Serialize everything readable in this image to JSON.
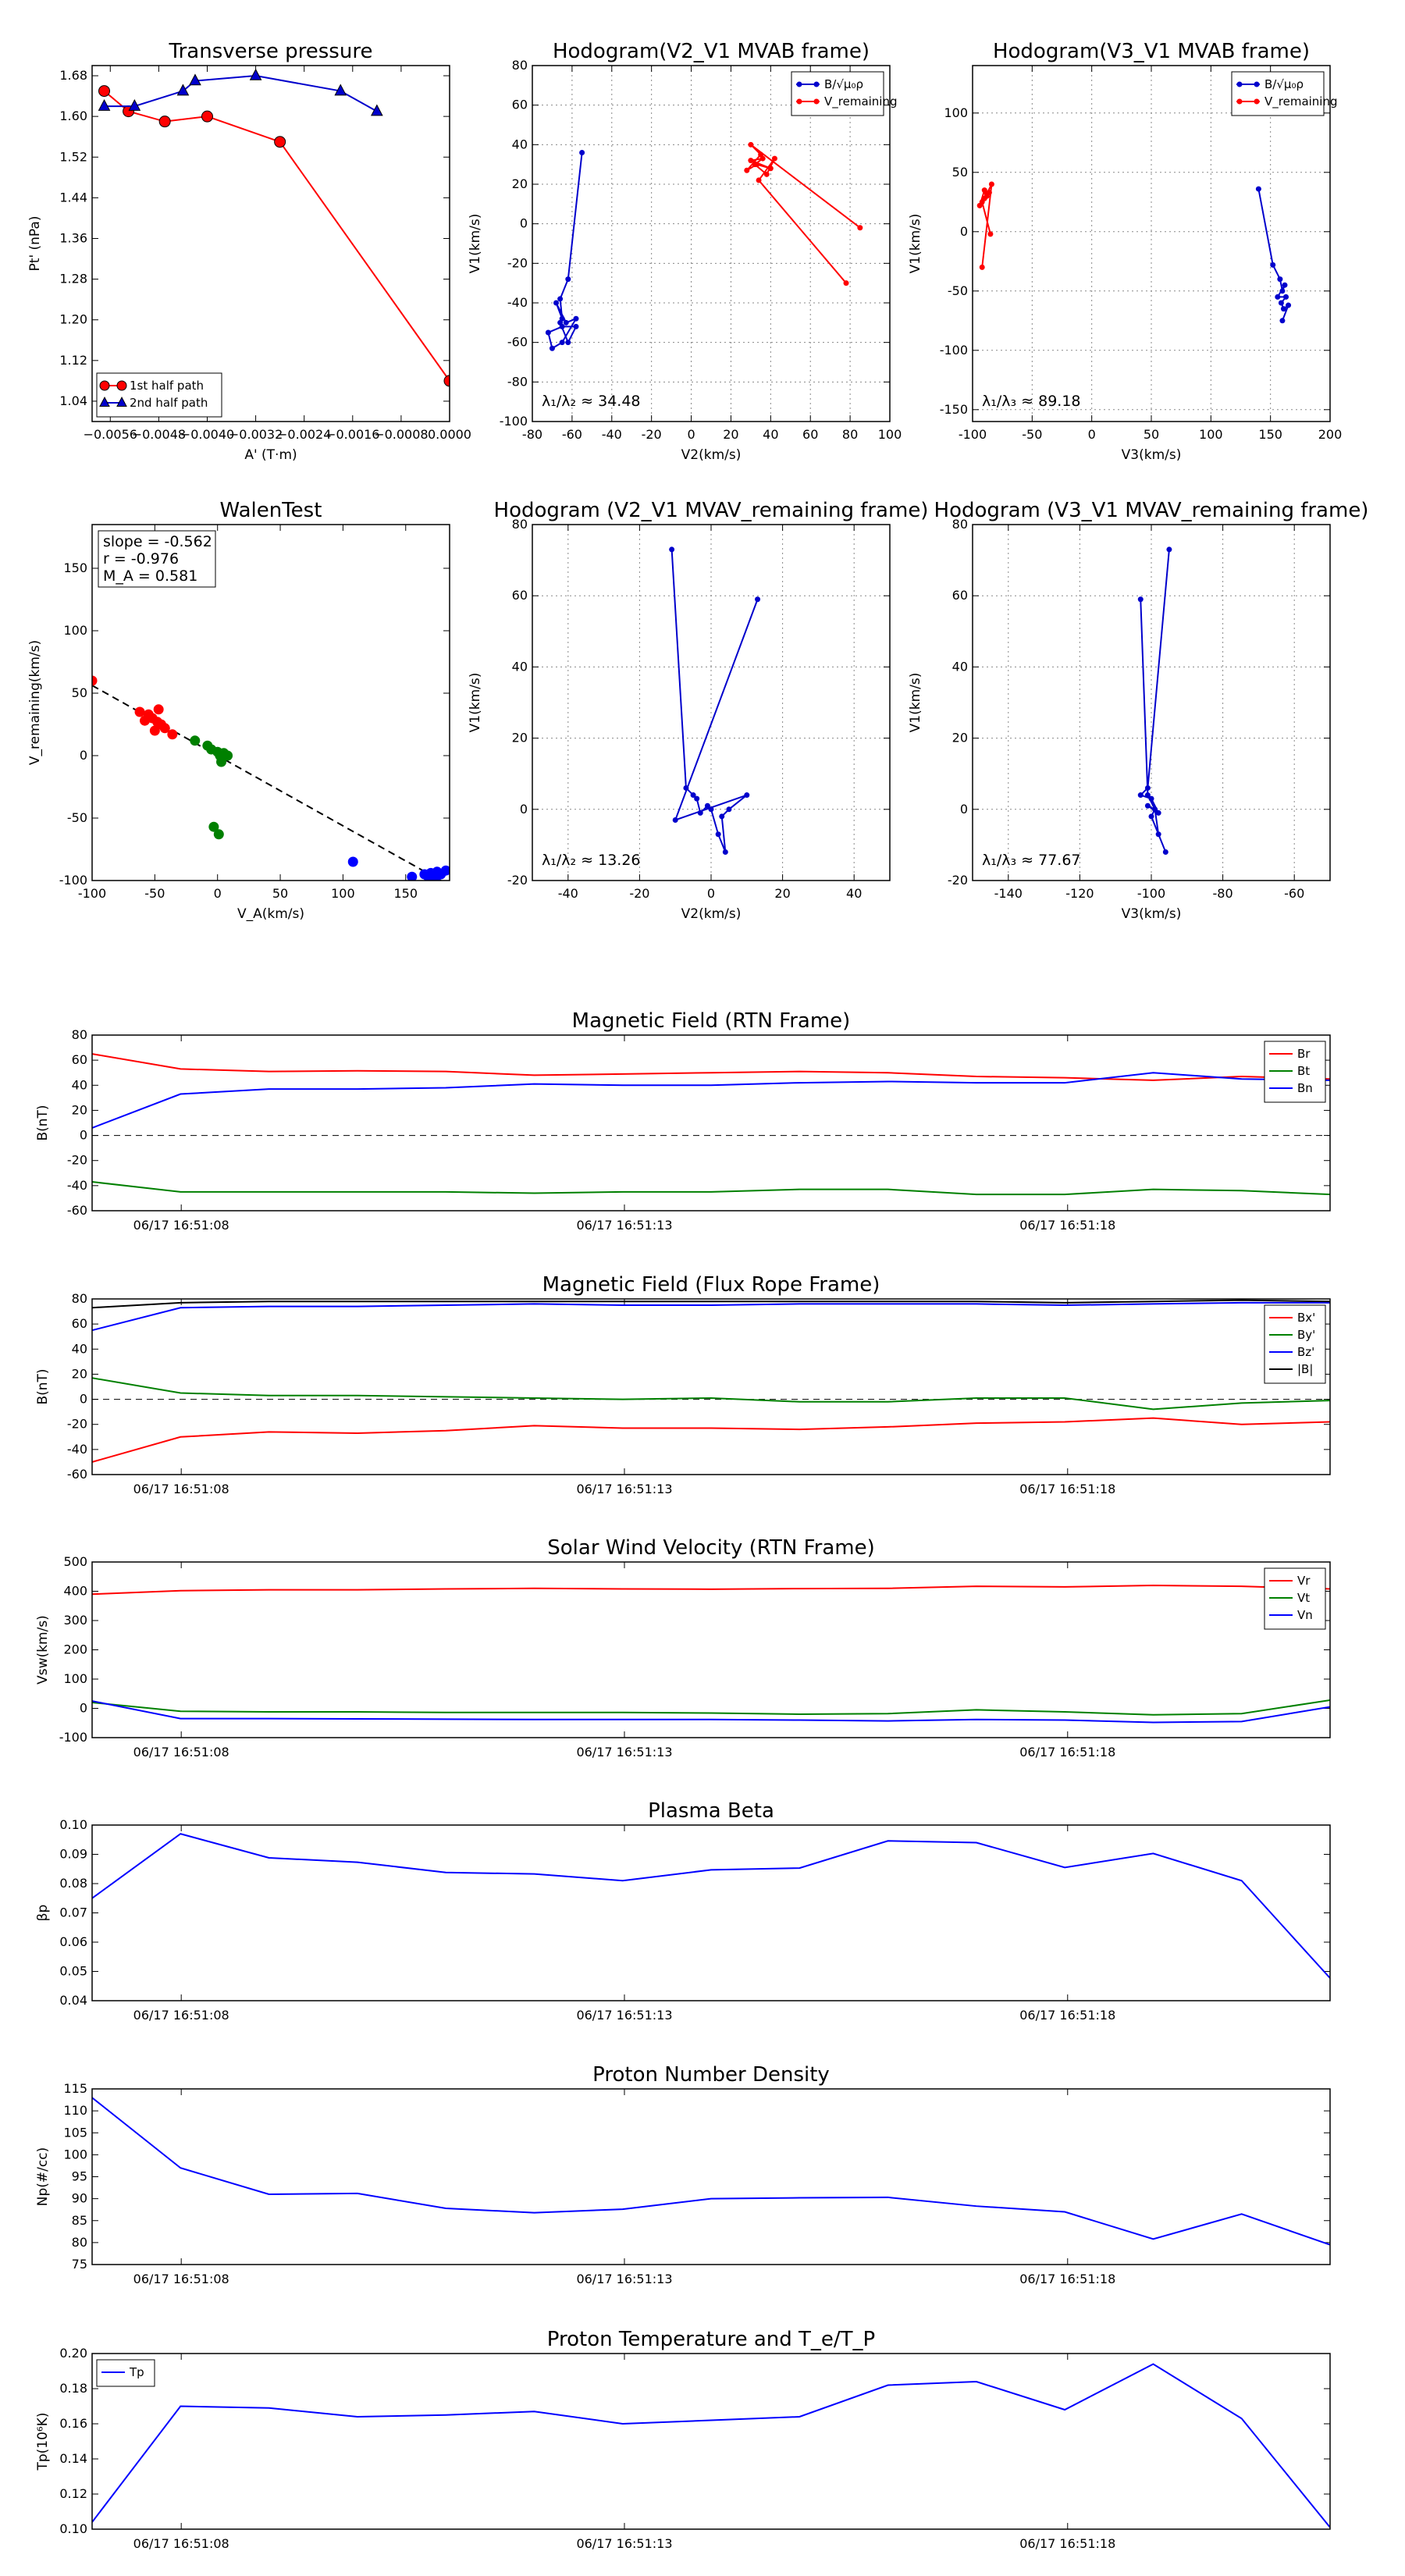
{
  "chart_data": [
    {
      "id": "transverse",
      "type": "line",
      "title": "Transverse pressure",
      "xlabel": "A' (T·m)",
      "ylabel": "Pt' (nPa)",
      "xlim": [
        -0.0059,
        0.0
      ],
      "ylim": [
        1.0,
        1.7
      ],
      "xticks": [
        -0.0056,
        -0.0048,
        -0.004,
        -0.0032,
        -0.0024,
        -0.0016,
        -0.0008,
        0.0
      ],
      "xticklabels": [
        "−0.0056",
        "−0.0048",
        "−0.0040",
        "−0.0032",
        "−0.0024",
        "−0.0016",
        "−0.0008",
        "0.0000"
      ],
      "yticks": [
        1.04,
        1.12,
        1.2,
        1.28,
        1.36,
        1.44,
        1.52,
        1.6,
        1.68
      ],
      "yticklabels": [
        "1.04",
        "1.12",
        "1.20",
        "1.28",
        "1.36",
        "1.44",
        "1.52",
        "1.60",
        "1.68"
      ],
      "legend": [
        "1st half path",
        "2nd half path"
      ],
      "series": [
        {
          "name": "1st half path",
          "color": "#ff0000",
          "marker": "circle",
          "x": [
            0.0,
            -0.0028,
            -0.004,
            -0.0047,
            -0.0053,
            -0.0057
          ],
          "y": [
            1.08,
            1.55,
            1.6,
            1.59,
            1.61,
            1.65
          ]
        },
        {
          "name": "2nd half path",
          "color": "#0000cc",
          "marker": "triangle",
          "x": [
            -0.0057,
            -0.0052,
            -0.0044,
            -0.0042,
            -0.0032,
            -0.0018,
            -0.0012
          ],
          "y": [
            1.62,
            1.62,
            1.65,
            1.67,
            1.68,
            1.65,
            1.61
          ]
        }
      ]
    },
    {
      "id": "hodo1",
      "type": "line",
      "title": "Hodogram(V2_V1 MVAB frame)",
      "xlabel": "V2(km/s)",
      "ylabel": "V1(km/s)",
      "xlim": [
        -80,
        100
      ],
      "ylim": [
        -100,
        80
      ],
      "xticks": [
        -80,
        -60,
        -40,
        -20,
        0,
        20,
        40,
        60,
        80,
        100
      ],
      "yticks": [
        -100,
        -80,
        -60,
        -40,
        -20,
        0,
        20,
        40,
        60,
        80
      ],
      "legend": [
        "B/√μ₀ρ",
        "V_remaining"
      ],
      "annotation": "λ₁/λ₂ ≈ 34.48",
      "series": [
        {
          "name": "B",
          "color": "#0000cc",
          "x": [
            -55,
            -62,
            -66,
            -65,
            -68,
            -63,
            -58,
            -65,
            -70,
            -72,
            -65,
            -58,
            -62,
            -66
          ],
          "y": [
            36,
            -28,
            -38,
            -48,
            -40,
            -50,
            -48,
            -60,
            -63,
            -55,
            -52,
            -52,
            -60,
            -50
          ]
        },
        {
          "name": "V",
          "color": "#ff0000",
          "x": [
            85,
            30,
            35,
            28,
            33,
            40,
            30,
            36,
            32,
            38,
            42,
            34,
            78
          ],
          "y": [
            -2,
            40,
            35,
            27,
            30,
            28,
            32,
            33,
            30,
            25,
            33,
            22,
            -30
          ]
        }
      ]
    },
    {
      "id": "hodo2",
      "type": "line",
      "title": "Hodogram(V3_V1 MVAB frame)",
      "xlabel": "V3(km/s)",
      "ylabel": "V1(km/s)",
      "xlim": [
        -100,
        200
      ],
      "ylim": [
        -160,
        140
      ],
      "xticks": [
        -100,
        -50,
        0,
        50,
        100,
        150,
        200
      ],
      "yticks": [
        -150,
        -100,
        -50,
        0,
        50,
        100
      ],
      "legend": [
        "B/√μ₀ρ",
        "V_remaining"
      ],
      "annotation": "λ₁/λ₃ ≈ 89.18",
      "series": [
        {
          "name": "B",
          "color": "#0000cc",
          "x": [
            140,
            152,
            158,
            160,
            162,
            156,
            163,
            159,
            161,
            165,
            160
          ],
          "y": [
            36,
            -28,
            -40,
            -50,
            -45,
            -55,
            -55,
            -60,
            -65,
            -62,
            -75
          ]
        },
        {
          "name": "V",
          "color": "#ff0000",
          "x": [
            -85,
            -92,
            -88,
            -90,
            -86,
            -94,
            -90,
            -88,
            -84,
            -92
          ],
          "y": [
            -2,
            25,
            30,
            28,
            33,
            22,
            35,
            32,
            40,
            -30
          ]
        }
      ]
    },
    {
      "id": "walen",
      "type": "scatter",
      "title": "WalenTest",
      "xlabel": "V_A(km/s)",
      "ylabel": "V_remaining(km/s)",
      "xlim": [
        -100,
        185
      ],
      "ylim": [
        -100,
        185
      ],
      "xticks": [
        -100,
        -50,
        0,
        50,
        100,
        150
      ],
      "yticks": [
        -100,
        -50,
        0,
        50,
        100,
        150
      ],
      "text_lines": [
        "slope = -0.562",
        "r = -0.976",
        "M_A = 0.581"
      ],
      "fit": {
        "slope": -0.562,
        "intercept": 0
      },
      "series": [
        {
          "name": "red",
          "color": "#ff0000",
          "x": [
            -100,
            -62,
            -55,
            -58,
            -52,
            -48,
            -45,
            -42,
            -50,
            -36,
            -47,
            -55
          ],
          "y": [
            60,
            35,
            33,
            28,
            30,
            27,
            25,
            22,
            20,
            17,
            37,
            32
          ]
        },
        {
          "name": "green",
          "color": "#008000",
          "x": [
            -18,
            -8,
            -5,
            0,
            2,
            5,
            8,
            3,
            -3,
            1
          ],
          "y": [
            12,
            8,
            5,
            3,
            0,
            2,
            0,
            -5,
            -57,
            -63
          ]
        },
        {
          "name": "blue",
          "color": "#0000ff",
          "x": [
            108,
            155,
            165,
            170,
            172,
            175,
            178,
            182,
            168,
            174
          ],
          "y": [
            -85,
            -97,
            -95,
            -94,
            -96,
            -93,
            -95,
            -92,
            -97,
            -98
          ]
        }
      ]
    },
    {
      "id": "hodo3",
      "type": "line",
      "title": "Hodogram (V2_V1 MVAV_remaining frame)",
      "xlabel": "V2(km/s)",
      "ylabel": "V1(km/s)",
      "xlim": [
        -50,
        50
      ],
      "ylim": [
        -20,
        80
      ],
      "xticks": [
        -40,
        -20,
        0,
        20,
        40
      ],
      "yticks": [
        -20,
        0,
        20,
        40,
        60,
        80
      ],
      "annotation": "λ₁/λ₂ ≈ 13.26",
      "series": [
        {
          "name": "V",
          "color": "#0000cc",
          "x": [
            -11,
            -7,
            -5,
            -4,
            -3,
            -1,
            0,
            2,
            4,
            3,
            5,
            10,
            -10,
            13
          ],
          "y": [
            73,
            6,
            4,
            3,
            -1,
            1,
            0,
            -7,
            -12,
            -2,
            0,
            4,
            -3,
            59
          ]
        }
      ]
    },
    {
      "id": "hodo4",
      "type": "line",
      "title": "Hodogram (V3_V1 MVAV_remaining frame)",
      "xlabel": "V3(km/s)",
      "ylabel": "V1(km/s)",
      "xlim": [
        -150,
        -50
      ],
      "ylim": [
        -20,
        80
      ],
      "xticks": [
        -140,
        -120,
        -100,
        -80,
        -60
      ],
      "yticks": [
        -20,
        0,
        20,
        40,
        60,
        80
      ],
      "annotation": "λ₁/λ₃ ≈ 77.67",
      "series": [
        {
          "name": "V",
          "color": "#0000cc",
          "x": [
            -95,
            -101,
            -103,
            -100,
            -98,
            -101,
            -99,
            -98,
            -96,
            -100,
            -99,
            -101,
            -103
          ],
          "y": [
            73,
            6,
            4,
            3,
            -1,
            1,
            0,
            -7,
            -12,
            -2,
            0,
            4,
            59
          ]
        }
      ]
    },
    {
      "id": "mag_rtn",
      "type": "line",
      "title": "Magnetic Field (RTN Frame)",
      "ylabel": "B(nT)",
      "ylim": [
        -60,
        80
      ],
      "yticks": [
        -60,
        -40,
        -20,
        0,
        20,
        40,
        60,
        80
      ],
      "xticklabels": [
        "06/17 16:51:08",
        "06/17 16:51:13",
        "06/17 16:51:18"
      ],
      "legend": [
        "Br",
        "Bt",
        "Bn"
      ],
      "zero_line": true,
      "series": [
        {
          "name": "Br",
          "color": "#ff0000",
          "values": [
            65,
            53,
            51,
            51.5,
            51,
            48,
            49,
            50,
            51,
            50,
            47,
            46,
            44,
            47,
            45
          ]
        },
        {
          "name": "Bt",
          "color": "#008000",
          "values": [
            -37,
            -45,
            -45,
            -45,
            -45,
            -46,
            -45,
            -45,
            -43,
            -43,
            -47,
            -47,
            -43,
            -44,
            -47
          ]
        },
        {
          "name": "Bn",
          "color": "#0000ff",
          "values": [
            6,
            33,
            37,
            37,
            38,
            41,
            40,
            40,
            42,
            43,
            42,
            42,
            50,
            45,
            44
          ]
        }
      ]
    },
    {
      "id": "mag_fr",
      "type": "line",
      "title": "Magnetic Field (Flux Rope Frame)",
      "ylabel": "B(nT)",
      "ylim": [
        -60,
        80
      ],
      "yticks": [
        -60,
        -40,
        -20,
        0,
        20,
        40,
        60,
        80
      ],
      "xticklabels": [
        "06/17 16:51:08",
        "06/17 16:51:13",
        "06/17 16:51:18"
      ],
      "legend": [
        "Bx'",
        "By'",
        "Bz'",
        "|B|"
      ],
      "zero_line": true,
      "series": [
        {
          "name": "Bx'",
          "color": "#ff0000",
          "values": [
            -50,
            -30,
            -26,
            -27,
            -25,
            -21,
            -23,
            -23,
            -24,
            -22,
            -19,
            -18,
            -15,
            -20,
            -18
          ]
        },
        {
          "name": "By'",
          "color": "#008000",
          "values": [
            17,
            5,
            3,
            3,
            2,
            1,
            0,
            1,
            -2,
            -2,
            1,
            1,
            -8,
            -3,
            -1
          ]
        },
        {
          "name": "Bz'",
          "color": "#0000ff",
          "values": [
            55,
            73,
            74,
            74,
            75,
            76,
            75,
            75,
            76,
            76,
            76,
            75,
            76,
            77,
            77
          ]
        },
        {
          "name": "|B|",
          "color": "#000000",
          "values": [
            73,
            77,
            78,
            78,
            78,
            78,
            78,
            78,
            78,
            78,
            78,
            77,
            78,
            79,
            78
          ]
        }
      ]
    },
    {
      "id": "vsw",
      "type": "line",
      "title": "Solar Wind Velocity (RTN Frame)",
      "ylabel": "Vsw(km/s)",
      "ylim": [
        -100,
        500
      ],
      "yticks": [
        -100,
        0,
        100,
        200,
        300,
        400,
        500
      ],
      "xticklabels": [
        "06/17 16:51:08",
        "06/17 16:51:13",
        "06/17 16:51:18"
      ],
      "legend": [
        "Vr",
        "Vt",
        "Vn"
      ],
      "series": [
        {
          "name": "Vr",
          "color": "#ff0000",
          "values": [
            390,
            402,
            405,
            405,
            408,
            410,
            408,
            407,
            409,
            410,
            417,
            415,
            420,
            417,
            408
          ]
        },
        {
          "name": "Vt",
          "color": "#008000",
          "values": [
            20,
            -10,
            -12,
            -12,
            -14,
            -14,
            -14,
            -16,
            -20,
            -18,
            -5,
            -12,
            -22,
            -18,
            28
          ]
        },
        {
          "name": "Vn",
          "color": "#0000ff",
          "values": [
            25,
            -35,
            -35,
            -36,
            -37,
            -38,
            -38,
            -38,
            -40,
            -43,
            -38,
            -40,
            -48,
            -45,
            5
          ]
        }
      ]
    },
    {
      "id": "beta",
      "type": "line",
      "title": "Plasma Beta",
      "ylabel": "βp",
      "ylim": [
        0.04,
        0.1
      ],
      "yticks": [
        0.04,
        0.05,
        0.06,
        0.07,
        0.08,
        0.09,
        0.1
      ],
      "yticklabels": [
        "0.04",
        "0.05",
        "0.06",
        "0.07",
        "0.08",
        "0.09",
        "0.10"
      ],
      "xticklabels": [
        "06/17 16:51:08",
        "06/17 16:51:13",
        "06/17 16:51:18"
      ],
      "series": [
        {
          "name": "beta",
          "color": "#0000ff",
          "values": [
            0.075,
            0.097,
            0.0888,
            0.0873,
            0.0838,
            0.0833,
            0.081,
            0.0847,
            0.0853,
            0.0946,
            0.094,
            0.0855,
            0.0903,
            0.081,
            0.0477
          ]
        }
      ]
    },
    {
      "id": "np",
      "type": "line",
      "title": "Proton Number Density",
      "ylabel": "Np(#/cc)",
      "ylim": [
        75,
        115
      ],
      "yticks": [
        75,
        80,
        85,
        90,
        95,
        100,
        105,
        110,
        115
      ],
      "xticklabels": [
        "06/17 16:51:08",
        "06/17 16:51:13",
        "06/17 16:51:18"
      ],
      "series": [
        {
          "name": "Np",
          "color": "#0000ff",
          "values": [
            113,
            97,
            91,
            91.2,
            87.8,
            86.8,
            87.6,
            90,
            90.2,
            90.3,
            88.3,
            87,
            80.8,
            86.5,
            79.5
          ]
        }
      ]
    },
    {
      "id": "tp",
      "type": "line",
      "title": "Proton Temperature and T_e/T_P",
      "ylabel": "Tp(10⁶K)",
      "ylim": [
        0.1,
        0.2
      ],
      "yticks": [
        0.1,
        0.12,
        0.14,
        0.16,
        0.18,
        0.2
      ],
      "yticklabels": [
        "0.10",
        "0.12",
        "0.14",
        "0.16",
        "0.18",
        "0.20"
      ],
      "xticklabels": [
        "06/17 16:51:08",
        "06/17 16:51:13",
        "06/17 16:51:18"
      ],
      "legend": [
        "Tp"
      ],
      "series": [
        {
          "name": "Tp",
          "color": "#0000ff",
          "values": [
            0.104,
            0.17,
            0.169,
            0.164,
            0.165,
            0.167,
            0.16,
            0.162,
            0.164,
            0.182,
            0.184,
            0.168,
            0.194,
            0.163,
            0.101
          ]
        }
      ]
    }
  ]
}
